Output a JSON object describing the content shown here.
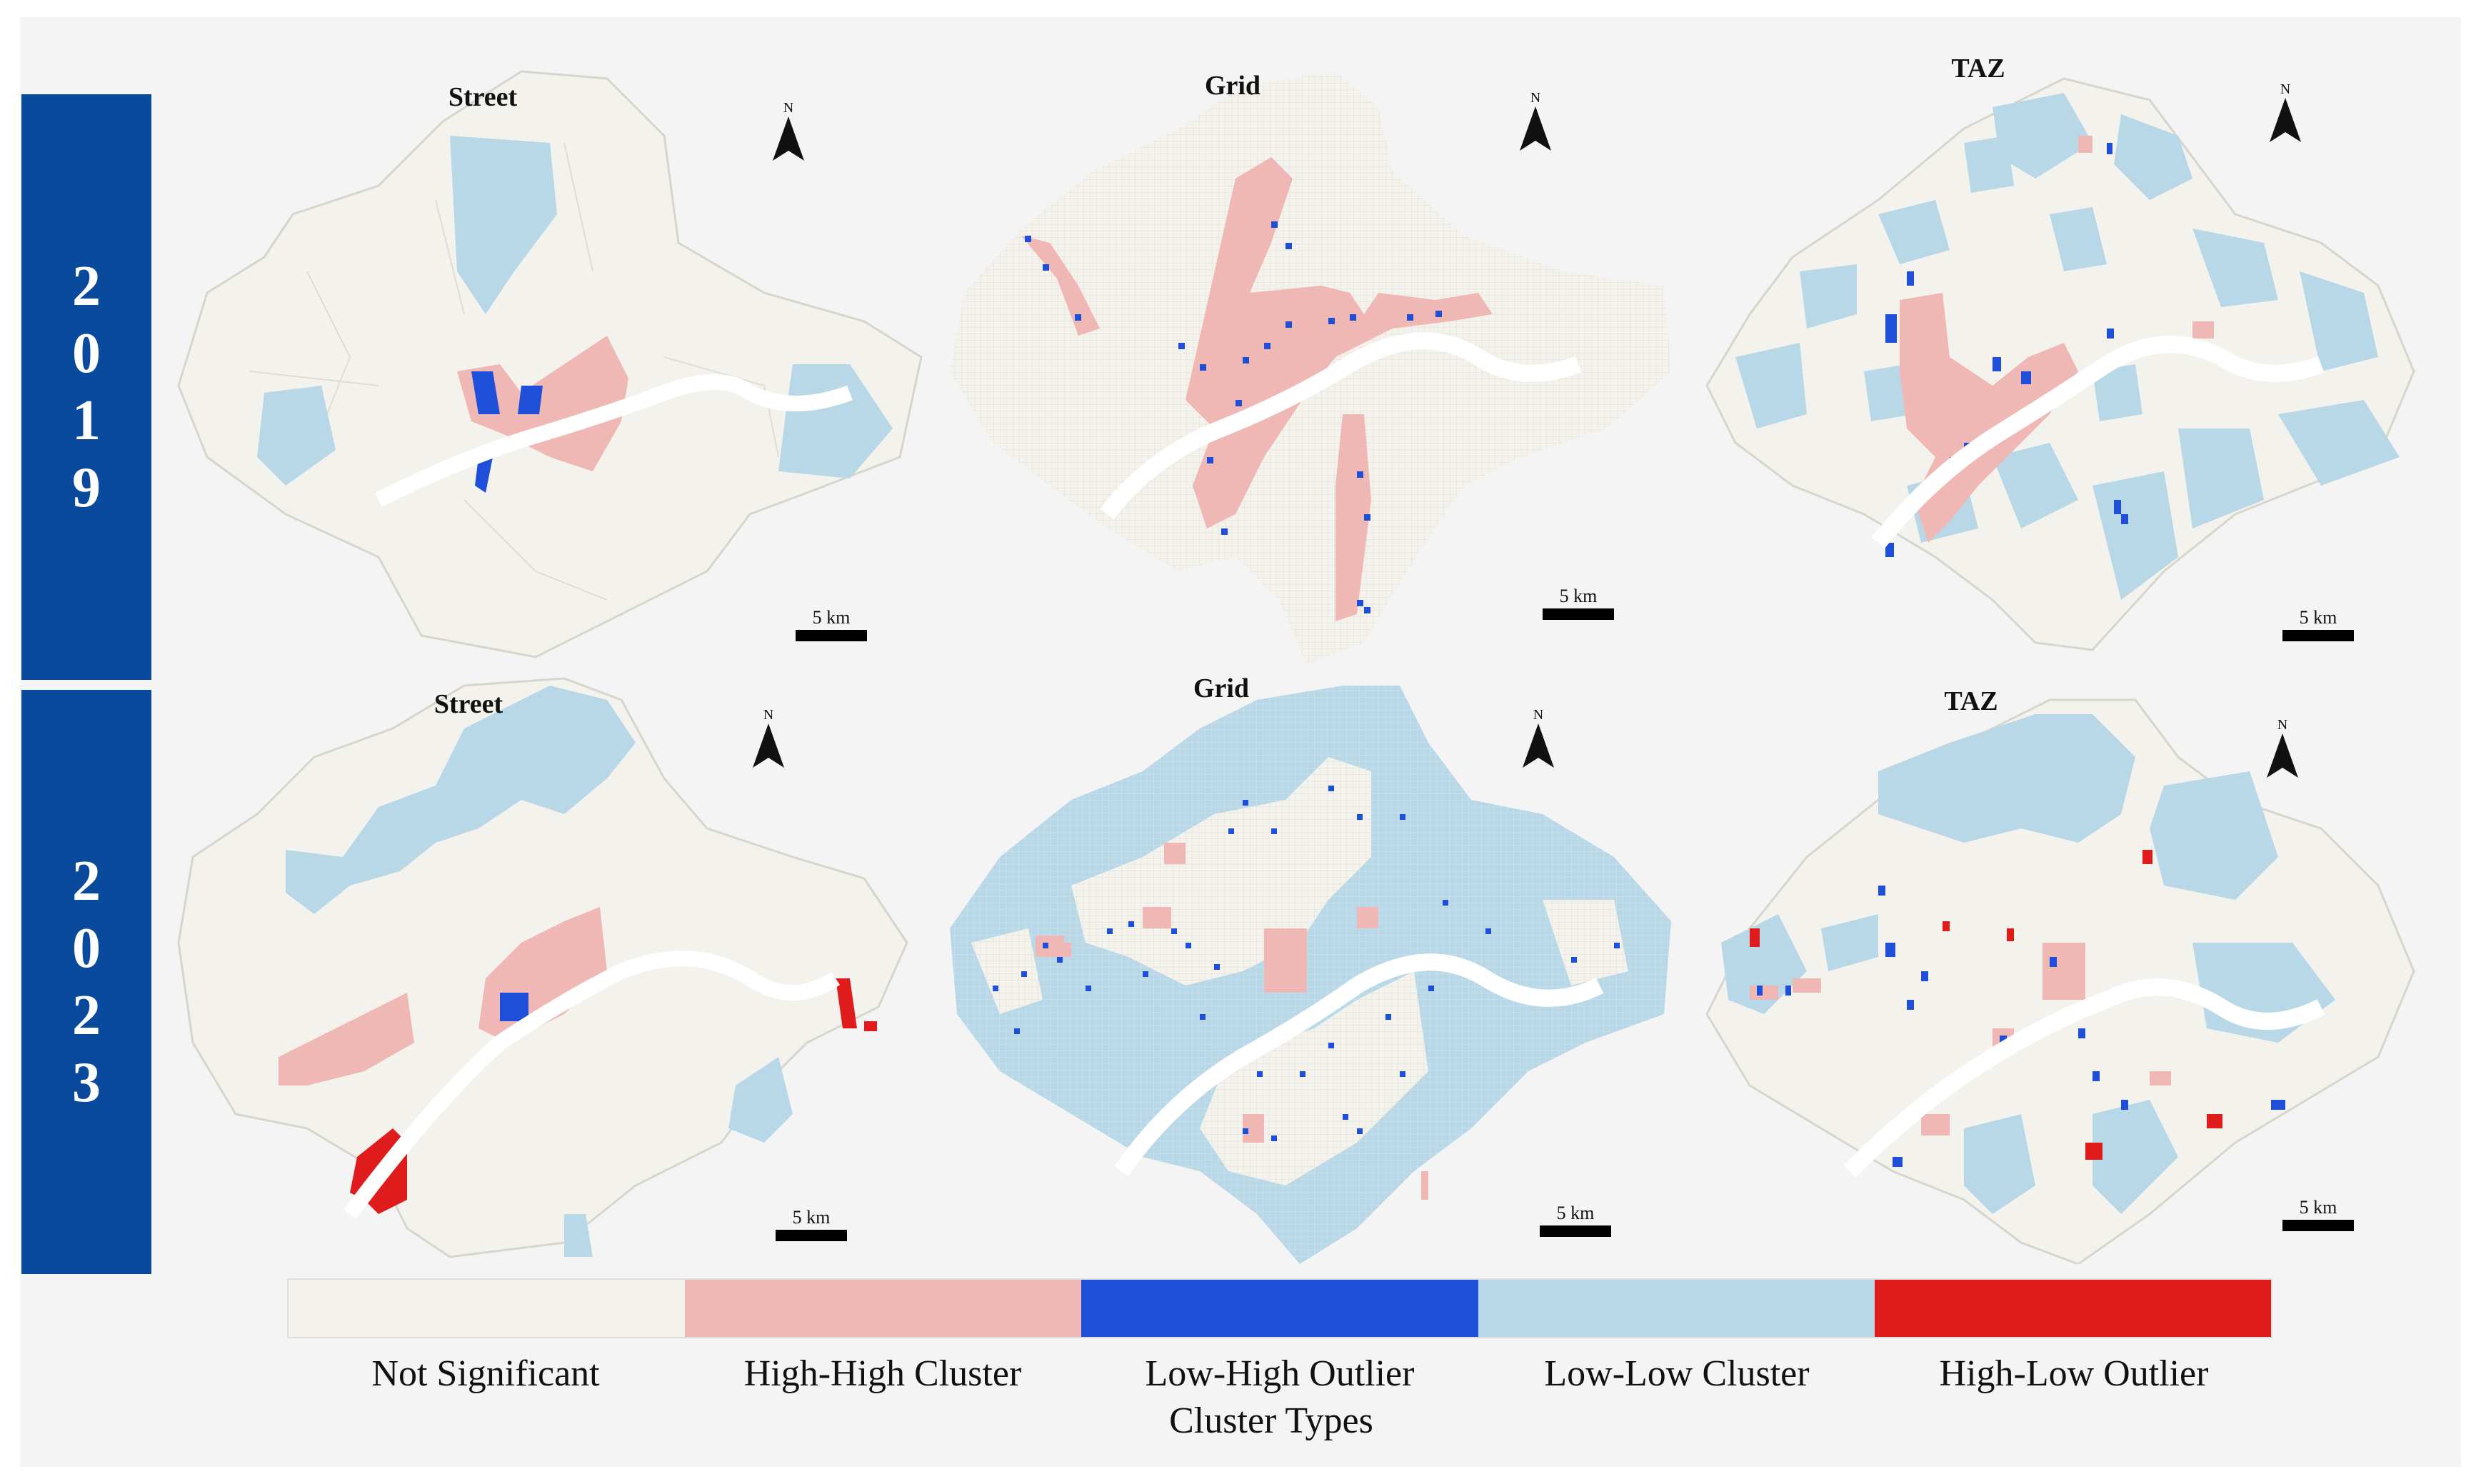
{
  "years": [
    "2019",
    "2023"
  ],
  "panel_titles": {
    "street": "Street",
    "grid": "Grid",
    "taz": "TAZ"
  },
  "north_label": "N",
  "scale_label": "5 km",
  "legend": {
    "title": "Cluster Types",
    "items": [
      {
        "label": "Not Significant",
        "color": "#f3f2ec"
      },
      {
        "label": "High-High Cluster",
        "color": "#f0b8b4"
      },
      {
        "label": "Low-High Outlier",
        "color": "#1f4fd8"
      },
      {
        "label": "Low-Low Cluster",
        "color": "#b8d8e8"
      },
      {
        "label": "High-Low Outlier",
        "color": "#e01b1b"
      }
    ]
  },
  "colors": {
    "background": "#f4f4f4",
    "year_bar": "#0a4a9c",
    "river": "#ffffff",
    "boundary": "#d6d6cc"
  }
}
